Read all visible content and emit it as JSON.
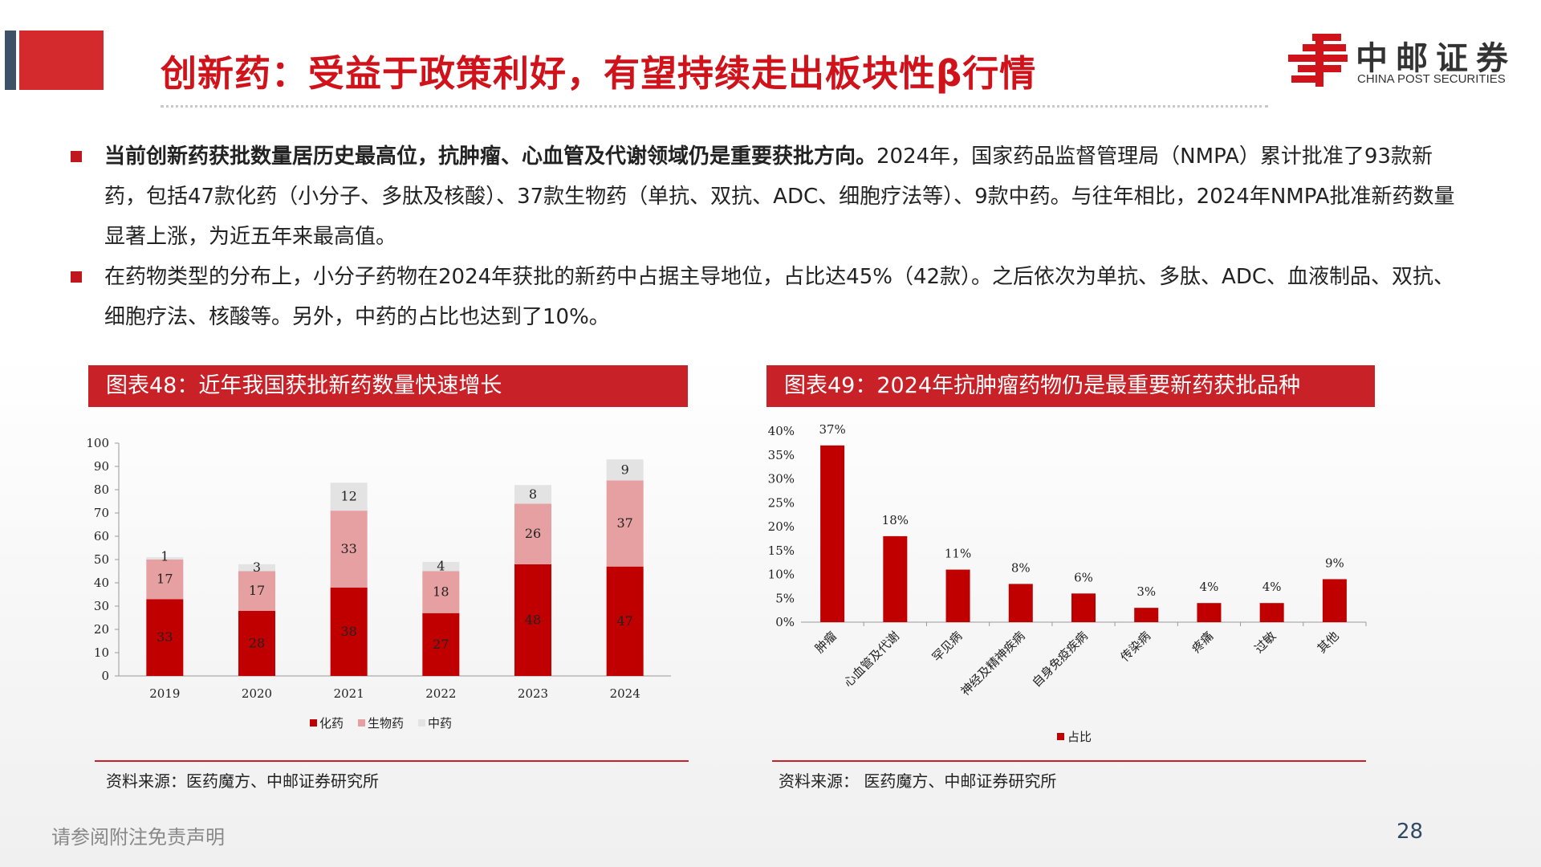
{
  "title": "创新药：受益于政策利好，有望持续走出板块性β行情",
  "logo": {
    "cn": "中邮证券",
    "en": "CHINA POST SECURITIES"
  },
  "bullets": [
    {
      "bold": "当前创新药获批数量居历史最高位，抗肿瘤、心血管及代谢领域仍是重要获批方向。",
      "text": "2024年，国家药品监督管理局（NMPA）累计批准了93款新药，包括47款化药（小分子、多肽及核酸）、37款生物药（单抗、双抗、ADC、细胞疗法等）、9款中药。与往年相比，2024年NMPA批准新药数量显著上涨，为近五年来最高值。"
    },
    {
      "bold": "",
      "text": "在药物类型的分布上，小分子药物在2024年获批的新药中占据主导地位，占比达45%（42款）。之后依次为单抗、多肽、ADC、血液制品、双抗、细胞疗法、核酸等。另外，中药的占比也达到了10%。"
    }
  ],
  "colors": {
    "chem": "#c00000",
    "bio": "#e6a0a2",
    "tcm": "#e3e3e3",
    "accent": "#c82127"
  },
  "chart_data": [
    {
      "type": "bar",
      "header": "图表48：近年我国获批新药数量快速增长",
      "stacked": true,
      "categories": [
        "2019",
        "2020",
        "2021",
        "2022",
        "2023",
        "2024"
      ],
      "series": [
        {
          "name": "化药",
          "values": [
            33,
            28,
            38,
            27,
            48,
            47
          ]
        },
        {
          "name": "生物药",
          "values": [
            17,
            17,
            33,
            18,
            26,
            37
          ]
        },
        {
          "name": "中药",
          "values": [
            1,
            3,
            12,
            4,
            8,
            9
          ]
        }
      ],
      "ylim": [
        0,
        100
      ],
      "yticks": [
        0,
        10,
        20,
        30,
        40,
        50,
        60,
        70,
        80,
        90,
        100
      ],
      "legend": "bottom",
      "source": "资料来源：医药魔方、中邮证券研究所"
    },
    {
      "type": "bar",
      "header": "图表49：2024年抗肿瘤药物仍是最重要新药获批品种",
      "categories": [
        "肿瘤",
        "心血管及代谢",
        "罕见病",
        "神经及精神疾病",
        "自身免疫疾病",
        "传染病",
        "疼痛",
        "过敏",
        "其他"
      ],
      "series": [
        {
          "name": "占比",
          "values": [
            37,
            18,
            11,
            8,
            6,
            3,
            4,
            4,
            9
          ]
        }
      ],
      "value_labels": [
        "37%",
        "18%",
        "11%",
        "8%",
        "6%",
        "3%",
        "4%",
        "4%",
        "9%"
      ],
      "ylim": [
        0,
        40
      ],
      "yticks": [
        "0%",
        "5%",
        "10%",
        "15%",
        "20%",
        "25%",
        "30%",
        "35%",
        "40%"
      ],
      "legend": "bottom",
      "source": "资料来源：  医药魔方、中邮证券研究所"
    }
  ],
  "footer": {
    "disclaimer": "请参阅附注免责声明",
    "page": "28"
  }
}
